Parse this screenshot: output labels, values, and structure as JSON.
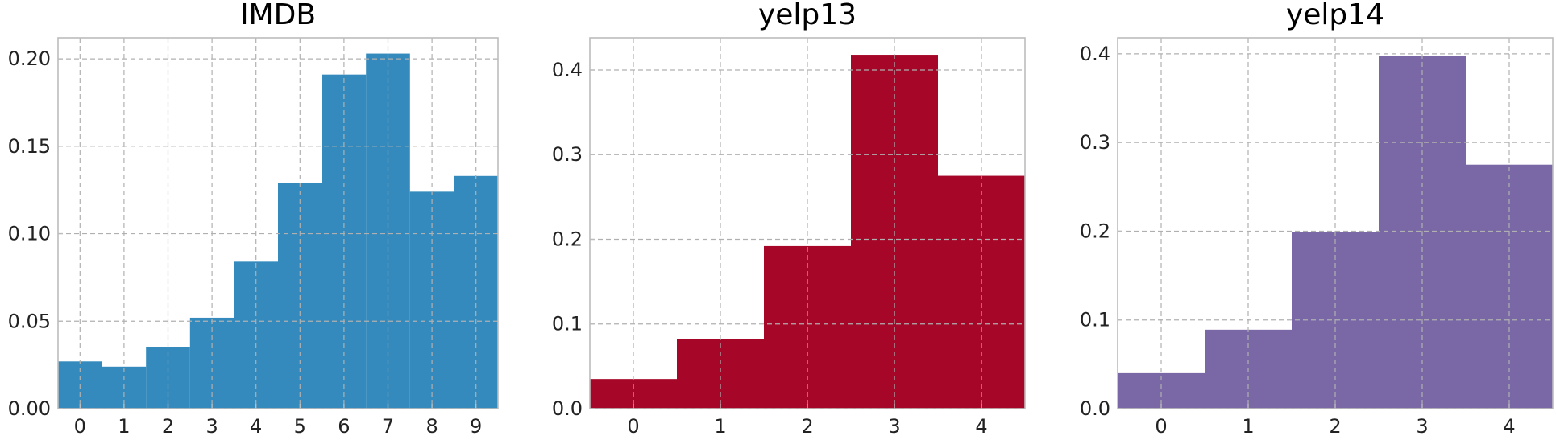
{
  "chart_data": [
    {
      "type": "bar",
      "title": "IMDB",
      "color": "#348ABD",
      "categories": [
        "0",
        "1",
        "2",
        "3",
        "4",
        "5",
        "6",
        "7",
        "8",
        "9"
      ],
      "values": [
        0.027,
        0.024,
        0.035,
        0.052,
        0.084,
        0.129,
        0.191,
        0.203,
        0.124,
        0.133
      ],
      "xlim": [
        -0.5,
        9.5
      ],
      "ylim": [
        0,
        0.212
      ],
      "yticks": [
        0.0,
        0.05,
        0.1,
        0.15,
        0.2
      ],
      "ytick_labels": [
        "0.00",
        "0.05",
        "0.10",
        "0.15",
        "0.20"
      ],
      "grid": true
    },
    {
      "type": "bar",
      "title": "yelp13",
      "color": "#A60628",
      "categories": [
        "0",
        "1",
        "2",
        "3",
        "4"
      ],
      "values": [
        0.035,
        0.082,
        0.192,
        0.418,
        0.275
      ],
      "xlim": [
        -0.5,
        4.5
      ],
      "ylim": [
        0,
        0.438
      ],
      "yticks": [
        0.0,
        0.1,
        0.2,
        0.3,
        0.4
      ],
      "ytick_labels": [
        "0.0",
        "0.1",
        "0.2",
        "0.3",
        "0.4"
      ],
      "grid": true
    },
    {
      "type": "bar",
      "title": "yelp14",
      "color": "#7A68A6",
      "categories": [
        "0",
        "1",
        "2",
        "3",
        "4"
      ],
      "values": [
        0.04,
        0.089,
        0.199,
        0.398,
        0.275
      ],
      "xlim": [
        -0.5,
        4.5
      ],
      "ylim": [
        0,
        0.418
      ],
      "yticks": [
        0.0,
        0.1,
        0.2,
        0.3,
        0.4
      ],
      "ytick_labels": [
        "0.0",
        "0.1",
        "0.2",
        "0.3",
        "0.4"
      ],
      "grid": true
    }
  ]
}
